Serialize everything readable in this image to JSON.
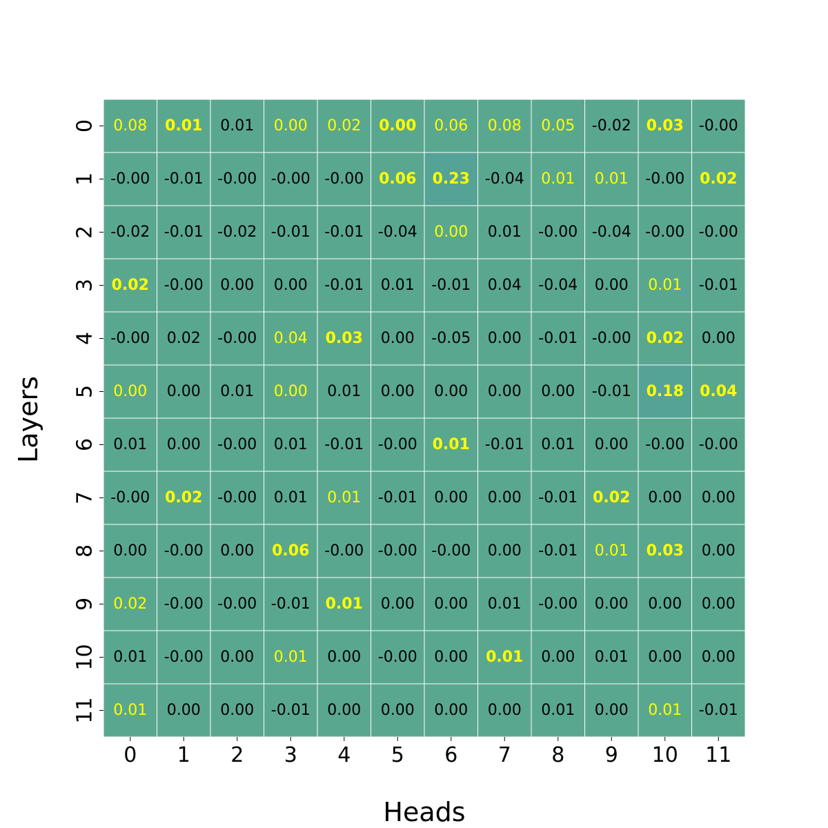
{
  "chart_data": {
    "type": "heatmap",
    "xlabel": "Heads",
    "ylabel": "Layers",
    "x_categories": [
      "0",
      "1",
      "2",
      "3",
      "4",
      "5",
      "6",
      "7",
      "8",
      "9",
      "10",
      "11"
    ],
    "y_categories": [
      "0",
      "1",
      "2",
      "3",
      "4",
      "5",
      "6",
      "7",
      "8",
      "9",
      "10",
      "11"
    ],
    "values": [
      [
        "0.08",
        "0.01",
        "0.01",
        "0.00",
        "0.02",
        "0.00",
        "0.06",
        "0.08",
        "0.05",
        "-0.02",
        "0.03",
        "-0.00"
      ],
      [
        "-0.00",
        "-0.01",
        "-0.00",
        "-0.00",
        "-0.00",
        "0.06",
        "0.23",
        "-0.04",
        "0.01",
        "0.01",
        "-0.00",
        "0.02"
      ],
      [
        "-0.02",
        "-0.01",
        "-0.02",
        "-0.01",
        "-0.01",
        "-0.04",
        "0.00",
        "0.01",
        "-0.00",
        "-0.04",
        "-0.00",
        "-0.00"
      ],
      [
        "0.02",
        "-0.00",
        "0.00",
        "0.00",
        "-0.01",
        "0.01",
        "-0.01",
        "0.04",
        "-0.04",
        "0.00",
        "0.01",
        "-0.01"
      ],
      [
        "-0.00",
        "0.02",
        "-0.00",
        "0.04",
        "0.03",
        "0.00",
        "-0.05",
        "0.00",
        "-0.01",
        "-0.00",
        "0.02",
        "0.00"
      ],
      [
        "0.00",
        "0.00",
        "0.01",
        "0.00",
        "0.01",
        "0.00",
        "0.00",
        "0.00",
        "0.00",
        "-0.01",
        "0.18",
        "0.04"
      ],
      [
        "0.01",
        "0.00",
        "-0.00",
        "0.01",
        "-0.01",
        "-0.00",
        "0.01",
        "-0.01",
        "0.01",
        "0.00",
        "-0.00",
        "-0.00"
      ],
      [
        "-0.00",
        "0.02",
        "-0.00",
        "0.01",
        "0.01",
        "-0.01",
        "0.00",
        "0.00",
        "-0.01",
        "0.02",
        "0.00",
        "0.00"
      ],
      [
        "0.00",
        "-0.00",
        "0.00",
        "0.06",
        "-0.00",
        "-0.00",
        "-0.00",
        "0.00",
        "-0.01",
        "0.01",
        "0.03",
        "0.00"
      ],
      [
        "0.02",
        "-0.00",
        "-0.00",
        "-0.01",
        "0.01",
        "0.00",
        "0.00",
        "0.01",
        "-0.00",
        "0.00",
        "0.00",
        "0.00"
      ],
      [
        "0.01",
        "-0.00",
        "0.00",
        "0.01",
        "0.00",
        "-0.00",
        "0.00",
        "0.01",
        "0.00",
        "0.01",
        "0.00",
        "0.00"
      ],
      [
        "0.01",
        "0.00",
        "0.00",
        "-0.01",
        "0.00",
        "0.00",
        "0.00",
        "0.00",
        "0.01",
        "0.00",
        "0.01",
        "-0.01"
      ]
    ],
    "label_style": [
      [
        "yellow",
        "yellow-bold",
        "black",
        "yellow",
        "yellow",
        "yellow-bold",
        "yellow",
        "yellow",
        "yellow",
        "black",
        "yellow-bold",
        "black"
      ],
      [
        "black",
        "black",
        "black",
        "black",
        "black",
        "yellow-bold",
        "yellow-bold",
        "black",
        "yellow",
        "yellow",
        "black",
        "yellow-bold"
      ],
      [
        "black",
        "black",
        "black",
        "black",
        "black",
        "black",
        "yellow",
        "black",
        "black",
        "black",
        "black",
        "black"
      ],
      [
        "yellow-bold",
        "black",
        "black",
        "black",
        "black",
        "black",
        "black",
        "black",
        "black",
        "black",
        "yellow",
        "black"
      ],
      [
        "black",
        "black",
        "black",
        "yellow",
        "yellow-bold",
        "black",
        "black",
        "black",
        "black",
        "black",
        "yellow-bold",
        "black"
      ],
      [
        "yellow",
        "black",
        "black",
        "yellow",
        "black",
        "black",
        "black",
        "black",
        "black",
        "black",
        "yellow-bold",
        "yellow-bold"
      ],
      [
        "black",
        "black",
        "black",
        "black",
        "black",
        "black",
        "yellow-bold",
        "black",
        "black",
        "black",
        "black",
        "black"
      ],
      [
        "black",
        "yellow-bold",
        "black",
        "black",
        "yellow",
        "black",
        "black",
        "black",
        "black",
        "yellow-bold",
        "black",
        "black"
      ],
      [
        "black",
        "black",
        "black",
        "yellow-bold",
        "black",
        "black",
        "black",
        "black",
        "black",
        "yellow",
        "yellow-bold",
        "black"
      ],
      [
        "yellow",
        "black",
        "black",
        "black",
        "yellow-bold",
        "black",
        "black",
        "black",
        "black",
        "black",
        "black",
        "black"
      ],
      [
        "black",
        "black",
        "black",
        "yellow",
        "black",
        "black",
        "black",
        "yellow-bold",
        "black",
        "black",
        "black",
        "black"
      ],
      [
        "yellow",
        "black",
        "black",
        "black",
        "black",
        "black",
        "black",
        "black",
        "black",
        "black",
        "yellow",
        "black"
      ]
    ],
    "colors": {
      "cell": "#5aa78f",
      "cell_high": "#55a297",
      "grid": "#ffffff",
      "text_dark": "#000000",
      "text_highlight": "#ffff00"
    },
    "grid": true,
    "legend": "none"
  }
}
